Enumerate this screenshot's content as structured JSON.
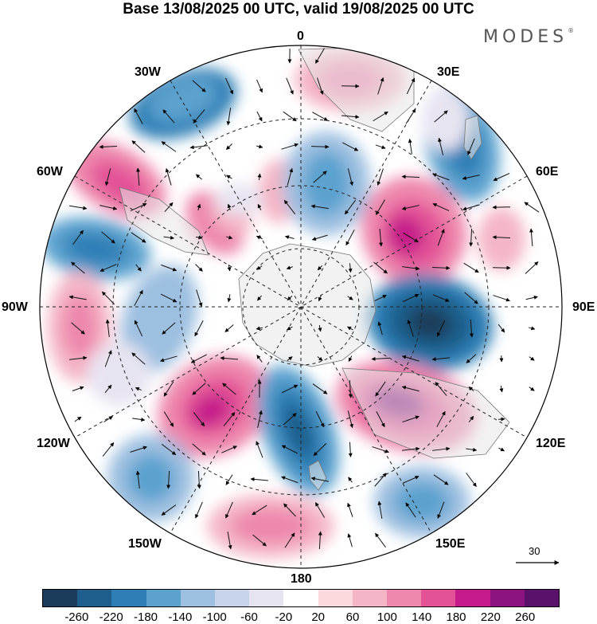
{
  "header": {
    "title": "Base 13/08/2025 00 UTC, valid 19/08/2025 00 UTC",
    "brand": "MODES",
    "brand_mark": "®"
  },
  "map": {
    "projection": "south polar stereographic",
    "longitude_labels": {
      "top": "0",
      "top_right": "30E",
      "upper_right": "60E",
      "right": "90E",
      "lower_right": "120E",
      "bottom_right": "150E",
      "bottom": "180",
      "bottom_left": "150W",
      "lower_left": "120W",
      "left": "90W",
      "upper_left": "60W",
      "top_left": "30W"
    },
    "vector_scale_label": "30"
  },
  "colorbar": {
    "colors": [
      "#1b3c5a",
      "#1d5e8c",
      "#2f7fb6",
      "#5ba2cf",
      "#9dbfe0",
      "#c7d3ea",
      "#e7e4f1",
      "#ffffff",
      "#fadadd",
      "#f4b6c6",
      "#ee87ad",
      "#e35297",
      "#c51b8a",
      "#8c1480",
      "#5a116c"
    ],
    "tick_labels": [
      "-260",
      "-220",
      "-180",
      "-140",
      "-100",
      "-60",
      "-20",
      "20",
      "60",
      "100",
      "140",
      "180",
      "220",
      "260"
    ]
  }
}
